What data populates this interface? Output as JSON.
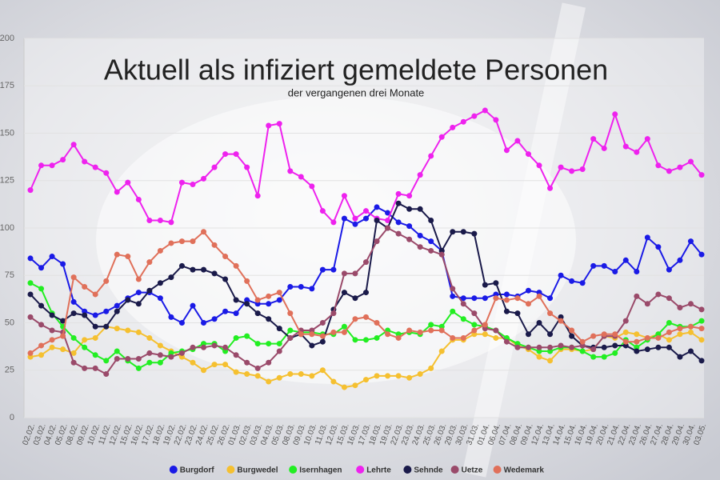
{
  "chart_data": {
    "type": "line",
    "title": "Aktuell als infiziert gemeldete Personen",
    "subtitle": "der vergangenen drei Monate",
    "categories": [
      "02.02.",
      "03.02.",
      "04.02.",
      "05.02.",
      "08.02.",
      "09.02.",
      "10.02.",
      "11.02.",
      "12.02.",
      "15.02.",
      "16.02.",
      "17.02.",
      "18.02.",
      "19.02.",
      "22.02.",
      "23.02.",
      "24.02.",
      "25.02.",
      "26.02.",
      "01.03.",
      "02.03.",
      "03.03.",
      "04.03.",
      "05.03.",
      "08.03.",
      "09.03.",
      "10.03.",
      "11.03.",
      "12.03.",
      "15.03.",
      "16.03.",
      "17.03.",
      "18.03.",
      "19.03.",
      "22.03.",
      "23.03.",
      "24.03.",
      "25.03.",
      "26.03.",
      "29.03.",
      "30.03.",
      "31.03.",
      "01.04.",
      "06.04.",
      "07.04.",
      "08.04.",
      "09.04.",
      "12.04.",
      "13.04.",
      "14.04.",
      "15.04.",
      "16.04.",
      "19.04.",
      "20.04.",
      "21.04.",
      "22.04.",
      "23.04.",
      "26.04.",
      "27.04.",
      "28.04.",
      "29.04.",
      "30.04.",
      "03.05."
    ],
    "series": [
      {
        "name": "Burgdorf",
        "color": "#1a1ae6",
        "values": [
          84,
          79,
          85,
          81,
          61,
          56,
          54,
          56,
          59,
          63,
          66,
          66,
          63,
          53,
          50,
          59,
          50,
          52,
          56,
          55,
          62,
          60,
          60,
          62,
          69,
          69,
          68,
          78,
          78,
          105,
          102,
          105,
          111,
          108,
          103,
          101,
          96,
          93,
          88,
          64,
          63,
          63,
          63,
          65,
          65,
          64,
          67,
          66,
          63,
          75,
          72,
          71,
          80,
          80,
          77,
          83,
          77,
          95,
          90,
          78,
          83,
          93,
          86
        ]
      },
      {
        "name": "Burgwedel",
        "color": "#f5c030",
        "values": [
          32,
          33,
          37,
          36,
          34,
          41,
          42,
          48,
          47,
          46,
          45,
          42,
          38,
          35,
          32,
          29,
          25,
          28,
          28,
          24,
          23,
          22,
          19,
          21,
          23,
          23,
          22,
          25,
          19,
          16,
          17,
          20,
          22,
          22,
          22,
          21,
          23,
          26,
          35,
          41,
          41,
          44,
          44,
          42,
          42,
          38,
          36,
          32,
          30,
          36,
          36,
          35,
          36,
          43,
          42,
          45,
          44,
          42,
          44,
          41,
          44,
          45,
          41
        ]
      },
      {
        "name": "Isernhagen",
        "color": "#22ee22",
        "values": [
          71,
          68,
          55,
          48,
          42,
          37,
          33,
          30,
          35,
          30,
          26,
          29,
          29,
          34,
          35,
          36,
          39,
          39,
          35,
          42,
          43,
          39,
          39,
          39,
          46,
          45,
          45,
          44,
          44,
          48,
          41,
          41,
          42,
          46,
          44,
          45,
          44,
          49,
          48,
          56,
          52,
          49,
          48,
          46,
          42,
          39,
          37,
          35,
          35,
          37,
          37,
          35,
          32,
          32,
          34,
          41,
          37,
          41,
          44,
          50,
          48,
          48,
          51
        ]
      },
      {
        "name": "Lehrte",
        "color": "#ee22ee",
        "values": [
          120,
          133,
          133,
          136,
          144,
          135,
          132,
          129,
          119,
          124,
          115,
          104,
          104,
          103,
          124,
          123,
          126,
          132,
          139,
          139,
          132,
          117,
          154,
          155,
          130,
          127,
          122,
          109,
          103,
          117,
          105,
          109,
          105,
          104,
          118,
          117,
          128,
          138,
          148,
          153,
          156,
          159,
          162,
          157,
          141,
          146,
          139,
          133,
          121,
          132,
          130,
          131,
          147,
          142,
          160,
          143,
          140,
          147,
          133,
          130,
          132,
          135,
          128
        ]
      },
      {
        "name": "Sehnde",
        "color": "#1a1a4a",
        "values": [
          65,
          59,
          54,
          51,
          55,
          54,
          48,
          48,
          56,
          62,
          60,
          67,
          71,
          74,
          80,
          78,
          78,
          76,
          73,
          62,
          60,
          55,
          52,
          47,
          42,
          44,
          38,
          40,
          57,
          66,
          63,
          66,
          104,
          100,
          113,
          110,
          110,
          104,
          88,
          98,
          98,
          97,
          70,
          71,
          56,
          55,
          44,
          50,
          44,
          53,
          43,
          38,
          37,
          37,
          38,
          38,
          35,
          36,
          37,
          37,
          32,
          35,
          30
        ]
      },
      {
        "name": "Uetze",
        "color": "#9a4a6a",
        "values": [
          53,
          49,
          46,
          45,
          29,
          26,
          26,
          23,
          31,
          31,
          31,
          34,
          33,
          32,
          34,
          37,
          37,
          38,
          37,
          33,
          29,
          26,
          29,
          35,
          42,
          46,
          46,
          50,
          55,
          76,
          76,
          82,
          93,
          100,
          97,
          94,
          90,
          88,
          86,
          68,
          60,
          55,
          47,
          46,
          40,
          37,
          37,
          37,
          37,
          38,
          37,
          38,
          36,
          43,
          43,
          51,
          64,
          60,
          65,
          63,
          58,
          60,
          57
        ]
      },
      {
        "name": "Wedemark",
        "color": "#e0705a",
        "values": [
          34,
          38,
          41,
          43,
          74,
          69,
          65,
          72,
          86,
          85,
          73,
          82,
          88,
          92,
          93,
          93,
          98,
          91,
          85,
          80,
          72,
          62,
          64,
          66,
          55,
          44,
          44,
          43,
          45,
          45,
          52,
          53,
          50,
          44,
          42,
          46,
          45,
          46,
          46,
          42,
          42,
          46,
          49,
          63,
          62,
          63,
          60,
          64,
          55,
          51,
          46,
          40,
          43,
          44,
          44,
          40,
          40,
          42,
          42,
          45,
          47,
          48,
          47
        ]
      }
    ],
    "ylim": [
      0,
      200
    ],
    "yticks": [
      0,
      25,
      50,
      75,
      100,
      125,
      150,
      175,
      200
    ],
    "grid": true,
    "legend": "bottom"
  }
}
